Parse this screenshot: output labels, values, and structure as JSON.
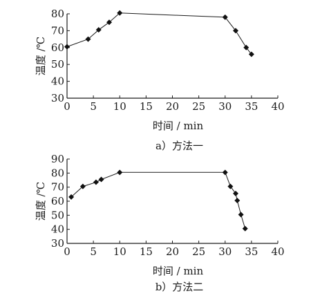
{
  "charts": [
    {
      "type": "line",
      "caption": "a）方法一",
      "xlabel": "时间 / min",
      "ylabel": "温度 /℃",
      "xlim": [
        0,
        40
      ],
      "ylim": [
        30,
        80
      ],
      "xticks": [
        0,
        5,
        10,
        15,
        20,
        25,
        30,
        35,
        40
      ],
      "yticks": [
        30,
        40,
        50,
        60,
        70,
        80
      ],
      "series": [
        {
          "x": [
            0,
            4,
            6,
            8,
            10,
            30,
            32,
            34,
            35
          ],
          "y": [
            60.5,
            65,
            70.5,
            75,
            80.5,
            78,
            70,
            60,
            56
          ]
        }
      ]
    },
    {
      "type": "line",
      "caption": "b）方法二",
      "xlabel": "时间 / min",
      "ylabel": "温度 /℃",
      "xlim": [
        0,
        40
      ],
      "ylim": [
        30,
        90
      ],
      "xticks": [
        0,
        5,
        10,
        15,
        20,
        25,
        30,
        35,
        40
      ],
      "yticks": [
        30,
        40,
        50,
        60,
        70,
        80,
        90
      ],
      "series": [
        {
          "x": [
            0.8,
            3,
            5.5,
            6.5,
            10,
            30,
            31,
            32,
            32.3,
            33,
            33.8
          ],
          "y": [
            63,
            70.5,
            73.5,
            75.5,
            80.5,
            80.5,
            70.5,
            65.5,
            60.5,
            50.5,
            40.5
          ]
        }
      ]
    }
  ],
  "chart_data": [
    {
      "type": "line",
      "title": "a）方法一",
      "xlabel": "时间 / min",
      "ylabel": "温度 /℃",
      "xlim": [
        0,
        40
      ],
      "ylim": [
        30,
        80
      ],
      "series": [
        {
          "x": [
            0,
            4,
            6,
            8,
            10,
            30,
            32,
            34,
            35
          ],
          "values": [
            60.5,
            65,
            70.5,
            75,
            80.5,
            78,
            70,
            60,
            56
          ]
        }
      ]
    },
    {
      "type": "line",
      "title": "b）方法二",
      "xlabel": "时间 / min",
      "ylabel": "温度 /℃",
      "xlim": [
        0,
        40
      ],
      "ylim": [
        30,
        90
      ],
      "series": [
        {
          "x": [
            0.8,
            3,
            5.5,
            6.5,
            10,
            30,
            31,
            32,
            32.3,
            33,
            33.8
          ],
          "values": [
            63,
            70.5,
            73.5,
            75.5,
            80.5,
            80.5,
            70.5,
            65.5,
            60.5,
            50.5,
            40.5
          ]
        }
      ]
    }
  ]
}
